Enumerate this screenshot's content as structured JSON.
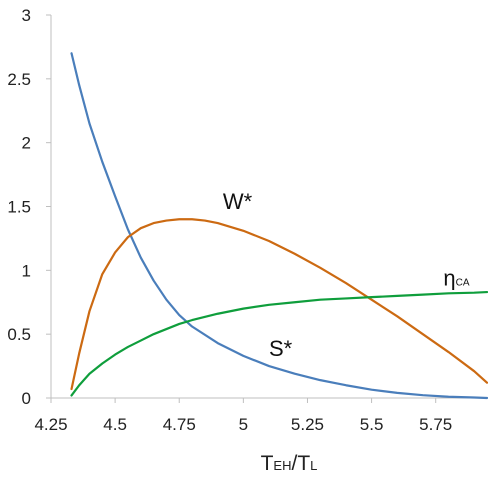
{
  "chart_data": {
    "type": "line",
    "title": "",
    "xlabel": {
      "main": "T",
      "sub1": "EH",
      "sep": "/T",
      "sub2": "L"
    },
    "ylabel": "",
    "xlim": [
      4.25,
      5.95
    ],
    "ylim": [
      0,
      3
    ],
    "x_ticks": [
      4.25,
      4.5,
      4.75,
      5,
      5.25,
      5.5,
      5.75
    ],
    "x_tick_labels": [
      "4.25",
      "4.5",
      "4.75",
      "5",
      "5.25",
      "5.5",
      "5.75"
    ],
    "y_ticks": [
      0,
      0.5,
      1,
      1.5,
      2,
      2.5,
      3
    ],
    "y_tick_labels": [
      "0",
      "0.5",
      "1",
      "1.5",
      "2",
      "2.5",
      "3"
    ],
    "grid": false,
    "series": [
      {
        "name": "S*",
        "color": "#4a7ebb",
        "x": [
          4.33,
          4.36,
          4.4,
          4.45,
          4.5,
          4.55,
          4.6,
          4.65,
          4.7,
          4.75,
          4.8,
          4.9,
          5.0,
          5.1,
          5.2,
          5.3,
          5.4,
          5.5,
          5.6,
          5.7,
          5.8,
          5.9,
          5.95
        ],
        "y": [
          2.7,
          2.45,
          2.15,
          1.85,
          1.58,
          1.32,
          1.1,
          0.92,
          0.77,
          0.65,
          0.56,
          0.43,
          0.33,
          0.25,
          0.19,
          0.14,
          0.1,
          0.065,
          0.04,
          0.022,
          0.01,
          0.004,
          0.0
        ]
      },
      {
        "name": "W*",
        "color": "#cc6a12",
        "x": [
          4.33,
          4.36,
          4.4,
          4.45,
          4.5,
          4.55,
          4.6,
          4.65,
          4.7,
          4.75,
          4.8,
          4.85,
          4.9,
          5.0,
          5.1,
          5.2,
          5.3,
          5.4,
          5.5,
          5.6,
          5.7,
          5.8,
          5.9,
          5.95
        ],
        "y": [
          0.07,
          0.35,
          0.68,
          0.97,
          1.14,
          1.26,
          1.33,
          1.37,
          1.39,
          1.4,
          1.4,
          1.39,
          1.37,
          1.31,
          1.23,
          1.13,
          1.02,
          0.9,
          0.77,
          0.64,
          0.5,
          0.36,
          0.21,
          0.12
        ]
      },
      {
        "name": "η",
        "name_sub": "CA",
        "color": "#0f9e3c",
        "x": [
          4.33,
          4.36,
          4.4,
          4.45,
          4.5,
          4.55,
          4.6,
          4.65,
          4.7,
          4.75,
          4.8,
          4.9,
          5.0,
          5.1,
          5.2,
          5.3,
          5.4,
          5.5,
          5.6,
          5.7,
          5.8,
          5.9,
          5.95
        ],
        "y": [
          0.02,
          0.1,
          0.19,
          0.27,
          0.34,
          0.4,
          0.45,
          0.5,
          0.54,
          0.58,
          0.61,
          0.66,
          0.7,
          0.73,
          0.75,
          0.77,
          0.78,
          0.79,
          0.8,
          0.81,
          0.82,
          0.825,
          0.83
        ]
      }
    ],
    "annotations": [
      {
        "text": "W*",
        "x": 4.92,
        "y": 1.48
      },
      {
        "text": "S*",
        "x": 5.1,
        "y": 0.33
      },
      {
        "text": "η",
        "sub": "CA",
        "x": 5.78,
        "y": 0.88
      }
    ]
  }
}
